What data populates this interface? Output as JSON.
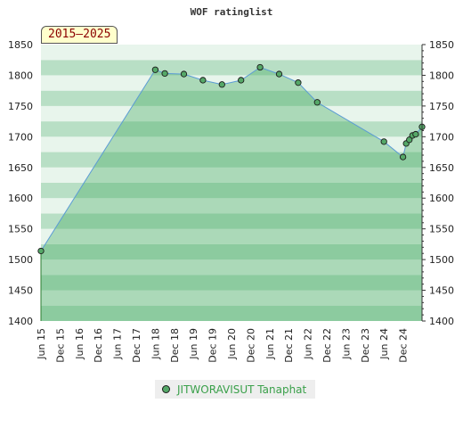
{
  "chart_data": {
    "type": "area",
    "title": "WOF ratinglist",
    "period_badge": "2015–2025",
    "ylim": [
      1400,
      1850
    ],
    "yticks": [
      1400,
      1450,
      1500,
      1550,
      1600,
      1650,
      1700,
      1750,
      1800,
      1850
    ],
    "xlim": [
      "2015-06",
      "2025-06"
    ],
    "xticks": [
      "Jun 15",
      "Dec 15",
      "Jun 16",
      "Dec 16",
      "Jun 17",
      "Dec 17",
      "Jun 18",
      "Dec 18",
      "Jun 19",
      "Dec 19",
      "Jun 20",
      "Dec 20",
      "Jun 21",
      "Dec 21",
      "Jun 22",
      "Dec 22",
      "Jun 23",
      "Dec 23",
      "Jun 24",
      "Dec 24"
    ],
    "series": [
      {
        "name": "JITWORAVISUT Tanaphat",
        "points": [
          {
            "x": "2015-06",
            "y": 1514
          },
          {
            "x": "2018-06",
            "y": 1809
          },
          {
            "x": "2018-09",
            "y": 1803
          },
          {
            "x": "2019-03",
            "y": 1802
          },
          {
            "x": "2019-09",
            "y": 1792
          },
          {
            "x": "2020-03",
            "y": 1785
          },
          {
            "x": "2020-09",
            "y": 1792
          },
          {
            "x": "2021-03",
            "y": 1813
          },
          {
            "x": "2021-09",
            "y": 1802
          },
          {
            "x": "2022-03",
            "y": 1788
          },
          {
            "x": "2022-09",
            "y": 1756
          },
          {
            "x": "2024-06",
            "y": 1692
          },
          {
            "x": "2024-12",
            "y": 1667
          },
          {
            "x": "2025-01",
            "y": 1689
          },
          {
            "x": "2025-02",
            "y": 1695
          },
          {
            "x": "2025-03",
            "y": 1702
          },
          {
            "x": "2025-04",
            "y": 1704
          },
          {
            "x": "2025-06",
            "y": 1716
          }
        ]
      }
    ],
    "grid": true,
    "legend": "bottom-center",
    "colors": {
      "line": "#5b9bd5",
      "marker": "#55a868",
      "band_light": "#e8f5ec",
      "band_dark": "#b8dfc5",
      "fill": "#3aa55a",
      "badge_text": "#8b0000",
      "legend_text": "#3aa04a"
    }
  }
}
